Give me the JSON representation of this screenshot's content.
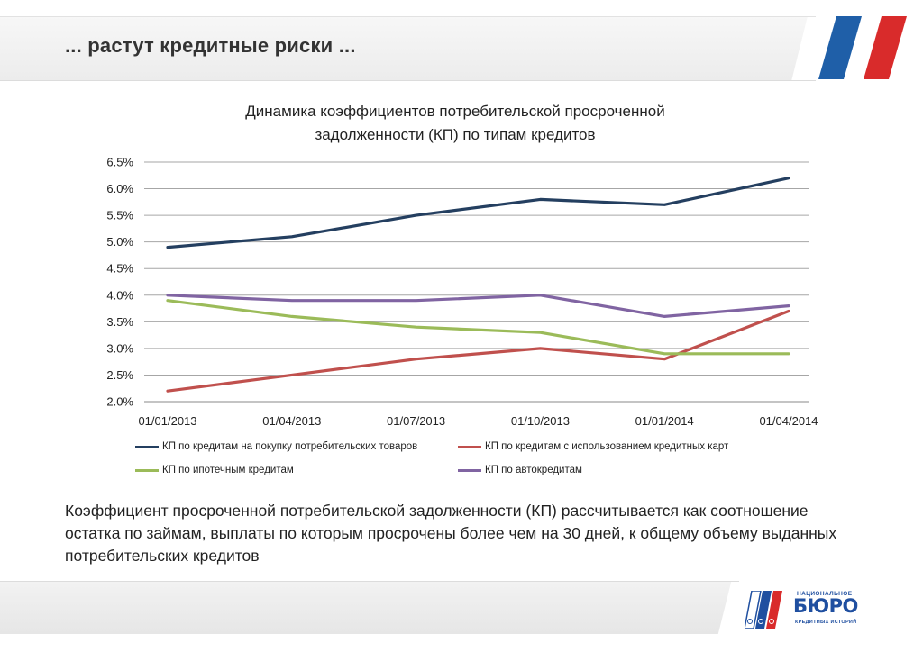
{
  "header": {
    "title": "... растут кредитные риски ..."
  },
  "chart_data": {
    "type": "line",
    "title_lines": [
      "Динамика коэффициентов потребительской просроченной",
      "задолженности (КП) по типам кредитов"
    ],
    "categories": [
      "01/01/2013",
      "01/04/2013",
      "01/07/2013",
      "01/10/2013",
      "01/01/2014",
      "01/04/2014"
    ],
    "y_ticks": [
      "2.0%",
      "2.5%",
      "3.0%",
      "3.5%",
      "4.0%",
      "4.5%",
      "5.0%",
      "5.5%",
      "6.0%",
      "6.5%"
    ],
    "ylim": [
      2.0,
      6.5
    ],
    "y_unit": "%",
    "grid": "horizontal",
    "legend_position": "bottom",
    "series": [
      {
        "name": "КП по кредитам на покупку потребительских товаров",
        "color": "#243f60",
        "values": [
          4.9,
          5.1,
          5.5,
          5.8,
          5.7,
          6.2
        ]
      },
      {
        "name": "КП по кредитам с использованием кредитных карт",
        "color": "#c0504d",
        "values": [
          2.2,
          2.5,
          2.8,
          3.0,
          2.8,
          3.7
        ]
      },
      {
        "name": "КП по ипотечным кредитам",
        "color": "#9bbb59",
        "values": [
          3.9,
          3.6,
          3.4,
          3.3,
          2.9,
          2.9
        ]
      },
      {
        "name": "КП по автокредитам",
        "color": "#8064a2",
        "values": [
          4.0,
          3.9,
          3.9,
          4.0,
          3.6,
          3.8
        ]
      }
    ]
  },
  "description": "Коэффициент просроченной потребительской задолженности (КП) рассчитывается как соотношение остатка по займам, выплаты по которым просрочены более чем на 30 дней, к общему объему выданных потребительских кредитов",
  "logo": {
    "top": "НАЦИОНАЛЬНОЕ",
    "main": "БЮРО",
    "bottom": "КРЕДИТНЫХ ИСТОРИЙ"
  },
  "colors": {
    "flag_blue": "#1f5fa8",
    "flag_red": "#d92b2b",
    "logo_blue": "#1f4fa0"
  }
}
